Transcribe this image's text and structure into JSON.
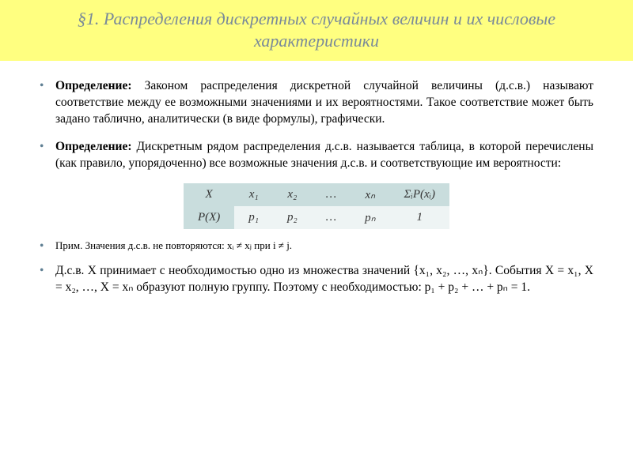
{
  "title": "§1. Распределения дискретных случайных величин и их числовые характеристики",
  "bullets": {
    "b1_strong": "Определение:",
    "b1_rest": " Законом распределения дискретной случайной величины (д.с.в.) называют соответствие между ее возможными значениями и их вероятностями. Такое соответствие может быть задано таблично, аналитически (в виде формулы), графически.",
    "b2_strong": "Определение:",
    "b2_rest": " Дискретным рядом распределения д.с.в. называется таблица, в которой перечислены (как правило, упорядоченно) все возможные значения д.с.в. и соответствующие им вероятности:",
    "b3": "Прим. Значения д.с.в. не повторяются: xᵢ ≠ xⱼ при i ≠ j.",
    "b4": "Д.с.в. X принимает с необходимостью одно из множества значений {x₁, x₂, …, xₙ}. События X = x₁, X = x₂, …, X = xₙ образуют полную группу. Поэтому с необходимостью: p₁ + p₂ + … + pₙ = 1."
  },
  "table": {
    "row1": [
      "X",
      "x₁",
      "x₂",
      "…",
      "xₙ",
      "ΣᵢP(xᵢ)"
    ],
    "row2": [
      "P(X)",
      "p₁",
      "p₂",
      "…",
      "pₙ",
      "1"
    ]
  },
  "colors": {
    "title_bg": "#ffff80",
    "title_fg": "#7a8a99",
    "bullet_marker": "#5f7f93",
    "table_header_bg": "#c9dddd",
    "table_cell_bg": "#eef4f4"
  }
}
